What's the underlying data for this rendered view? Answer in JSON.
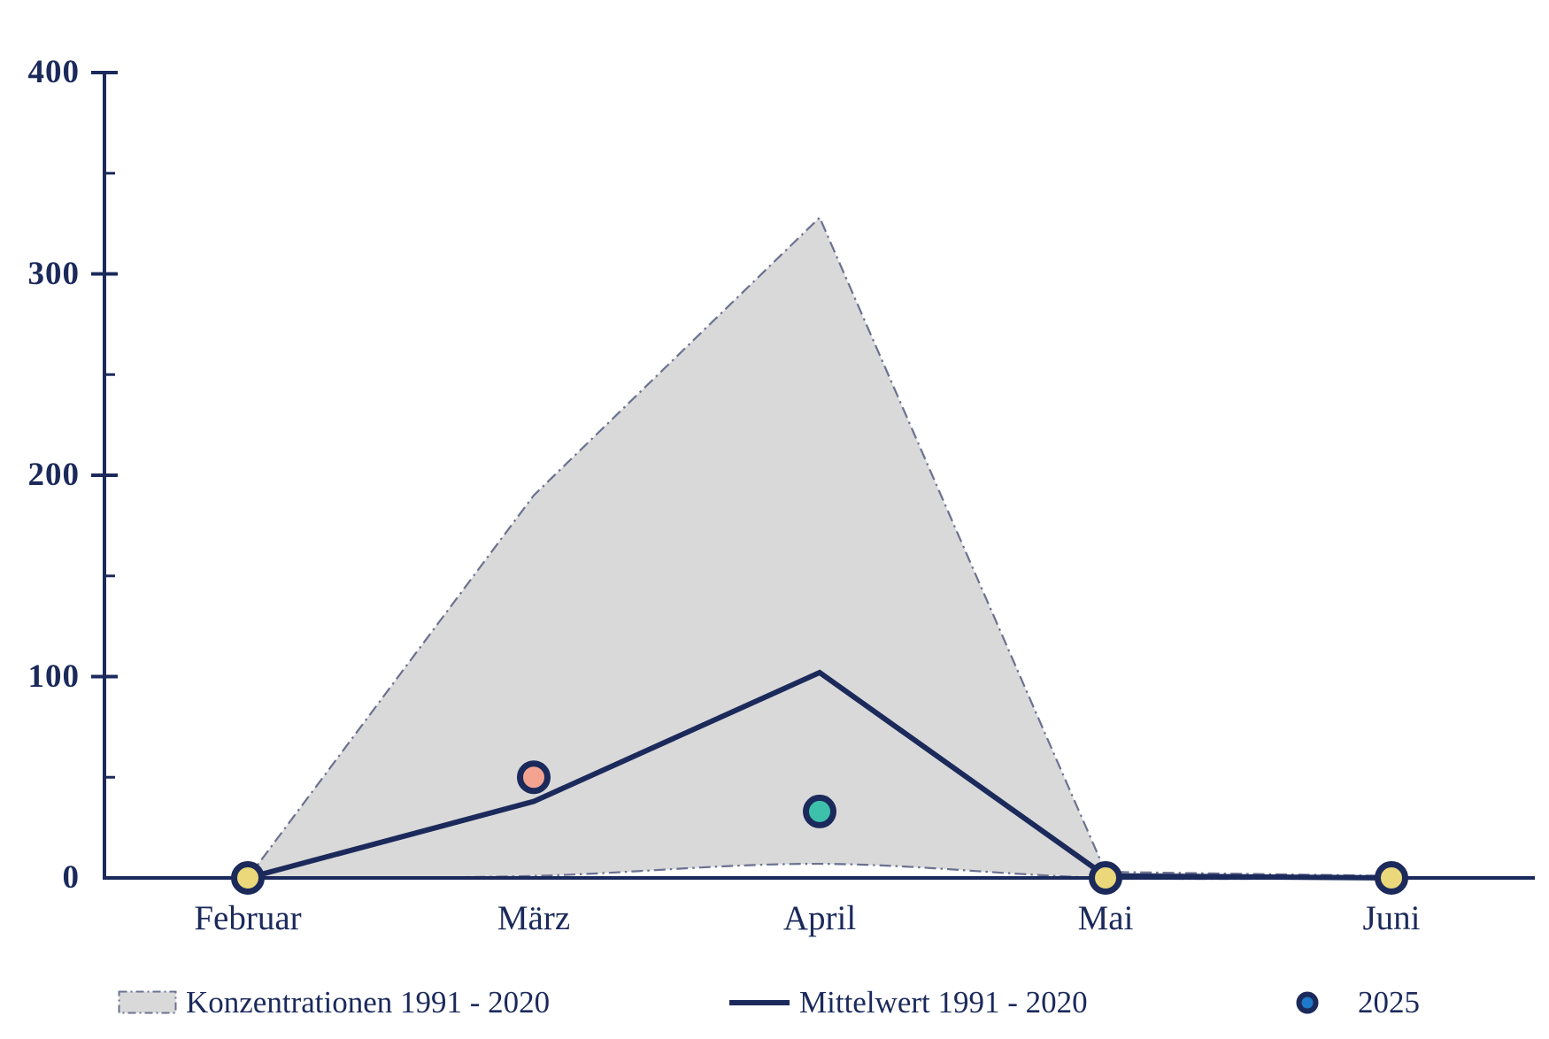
{
  "chart_data": {
    "type": "area",
    "title": "",
    "xlabel": "",
    "ylabel": "",
    "categories": [
      "Februar",
      "März",
      "April",
      "Mai",
      "Juni"
    ],
    "y_ticks": [
      "0",
      "100",
      "200",
      "300",
      "400"
    ],
    "y_tick_values": [
      0,
      100,
      200,
      300,
      400
    ],
    "y_minor_tick_values": [
      50,
      150,
      250,
      350
    ],
    "ylim": [
      0,
      400
    ],
    "grid": false,
    "legend_position": "bottom",
    "series": [
      {
        "name": "Konzentrationen 1991 - 2020",
        "type": "band",
        "upper": [
          0,
          190,
          328,
          3,
          1
        ],
        "lower": [
          0,
          1,
          7,
          0,
          0
        ],
        "fill": "#d9d9d9",
        "edge": "#6b7191"
      },
      {
        "name": "Mittelwert 1991 - 2020",
        "type": "line",
        "values": [
          0,
          38,
          102,
          1,
          0
        ],
        "color": "#1b2a5b"
      },
      {
        "name": "2025",
        "type": "scatter",
        "values": [
          0,
          50,
          33,
          0,
          0
        ],
        "point_colors": [
          "#ead87a",
          "#f4a391",
          "#3ec1ab",
          "#ead87a",
          "#ead87a"
        ],
        "ring_color": "#1b2a5b"
      }
    ],
    "legend": [
      {
        "label": "Konzentrationen 1991 - 2020",
        "swatch": "band"
      },
      {
        "label": "Mittelwert 1991 - 2020",
        "swatch": "line"
      },
      {
        "label": "2025",
        "swatch": "dot",
        "dot_fill": "#1f7ac9"
      }
    ]
  },
  "colors": {
    "axis_navy": "#1b2a5b",
    "text_navy": "#1b2a5b",
    "band_gray": "#d9d9d9",
    "band_edge": "#6b7191",
    "dot_yellow": "#ead87a",
    "dot_salmon": "#f4a391",
    "dot_teal": "#3ec1ab",
    "legend_dot_blue": "#1f7ac9",
    "background": "#ffffff"
  }
}
